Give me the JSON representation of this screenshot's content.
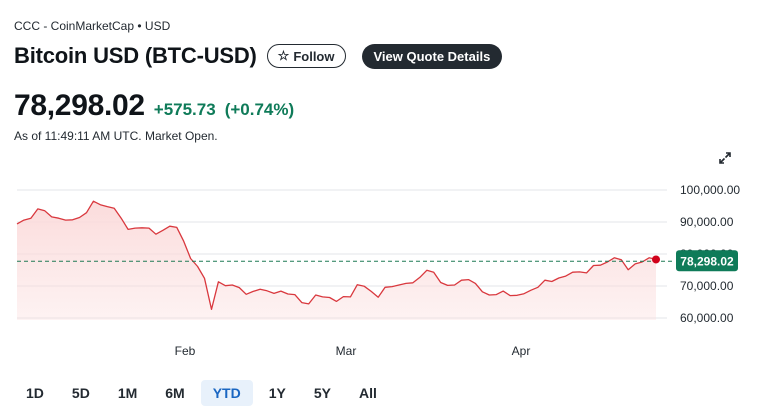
{
  "header": {
    "source": "CCC - CoinMarketCap • USD",
    "title": "Bitcoin USD (BTC-USD)",
    "follow_label": "Follow",
    "follow_icon": "star-outline-icon",
    "quote_label": "View Quote Details"
  },
  "quote": {
    "price": "78,298.02",
    "change": "+575.73",
    "change_pct": "(+0.74%)",
    "as_of": "As of 11:49:11 AM UTC. Market Open."
  },
  "colors": {
    "positive": "#0f7b59",
    "line": "#d9383e",
    "fill": "#fbdcdc",
    "dot": "#d0021b",
    "active_range_bg": "#e8f1fb",
    "active_range_text": "#1a66c2"
  },
  "chart_data": {
    "type": "area",
    "y_ticks": [
      "100,000.00",
      "90,000.00",
      "80,000.00",
      "70,000.00",
      "60,000.00"
    ],
    "x_ticks": [
      "Feb",
      "Mar",
      "Apr"
    ],
    "current_label": "78,298.02",
    "reference_value": 77722.29,
    "ylim": [
      57000,
      103000
    ],
    "grid": true,
    "values": [
      89400,
      90600,
      91200,
      94100,
      93500,
      91600,
      91200,
      90600,
      90700,
      91400,
      92900,
      96500,
      95400,
      94800,
      94300,
      91200,
      87700,
      88100,
      88200,
      88100,
      86200,
      87400,
      88700,
      88300,
      84000,
      78600,
      76100,
      72400,
      62700,
      71300,
      70100,
      70300,
      69500,
      67400,
      68300,
      69000,
      68500,
      67700,
      68400,
      67500,
      67300,
      64800,
      64400,
      67200,
      66600,
      66400,
      65200,
      66700,
      66600,
      70400,
      69900,
      68300,
      66500,
      69600,
      69800,
      70300,
      70800,
      71000,
      72700,
      74900,
      74300,
      71100,
      70200,
      70300,
      71800,
      72000,
      70800,
      68200,
      67200,
      67300,
      68400,
      67000,
      67100,
      67600,
      68700,
      69600,
      71800,
      71400,
      72500,
      73100,
      74300,
      74400,
      74100,
      76400,
      76500,
      77500,
      78800,
      78200,
      75100,
      76900,
      77500,
      78800,
      78300
    ]
  },
  "ranges": [
    {
      "label": "1D",
      "active": false
    },
    {
      "label": "5D",
      "active": false
    },
    {
      "label": "1M",
      "active": false
    },
    {
      "label": "6M",
      "active": false
    },
    {
      "label": "YTD",
      "active": true
    },
    {
      "label": "1Y",
      "active": false
    },
    {
      "label": "5Y",
      "active": false
    },
    {
      "label": "All",
      "active": false
    }
  ]
}
